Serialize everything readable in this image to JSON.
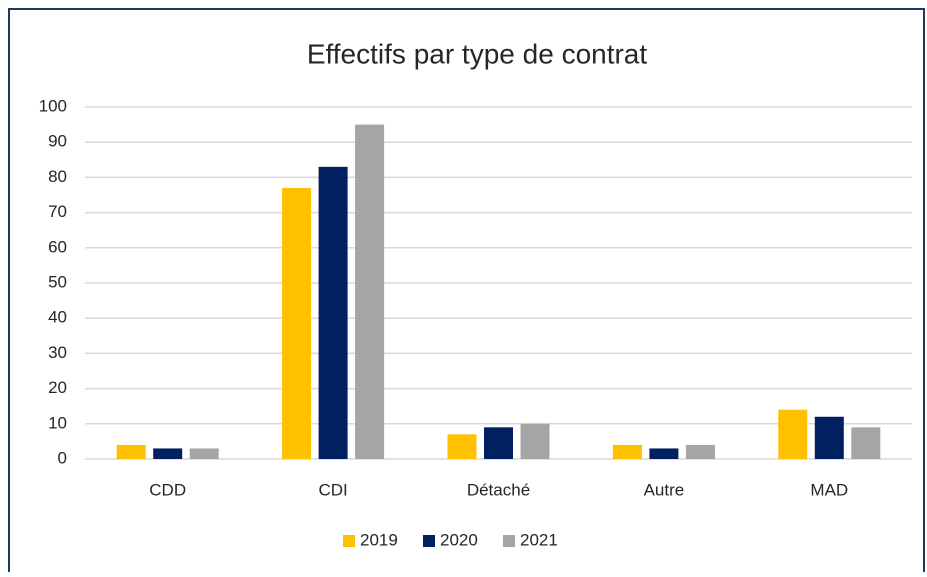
{
  "chart_data": {
    "type": "bar",
    "title": "Effectifs par type de contrat",
    "categories": [
      "CDD",
      "CDI",
      "Détaché",
      "Autre",
      "MAD"
    ],
    "series": [
      {
        "name": "2019",
        "color": "#ffc000",
        "values": [
          4,
          77,
          7,
          4,
          14
        ]
      },
      {
        "name": "2020",
        "color": "#002060",
        "values": [
          3,
          83,
          9,
          3,
          12
        ]
      },
      {
        "name": "2021",
        "color": "#a5a5a5",
        "values": [
          3,
          95,
          10,
          4,
          9
        ]
      }
    ],
    "ylim": [
      0,
      100
    ],
    "yticks": [
      0,
      10,
      20,
      30,
      40,
      50,
      60,
      70,
      80,
      90,
      100
    ],
    "grid": true,
    "legend": "bottom"
  }
}
